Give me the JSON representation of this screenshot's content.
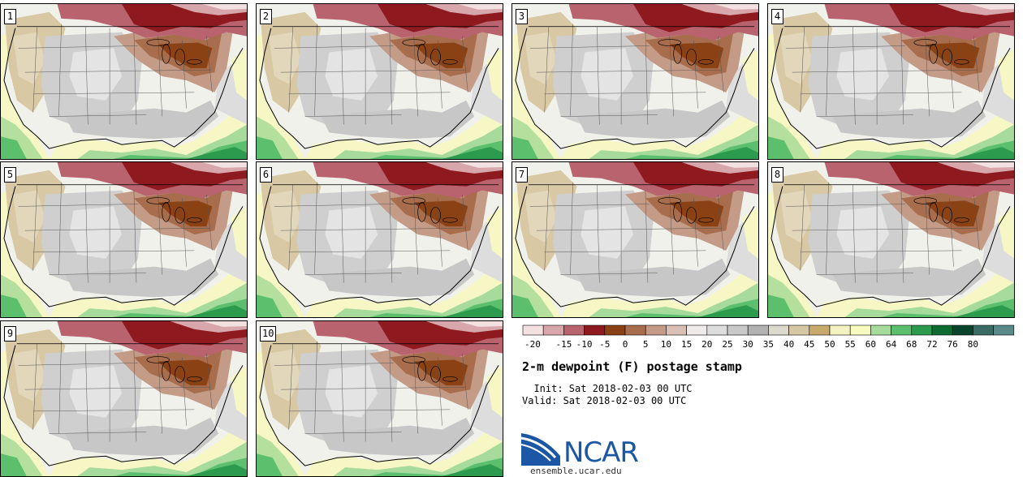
{
  "panels": [
    {
      "number": "1"
    },
    {
      "number": "2"
    },
    {
      "number": "3"
    },
    {
      "number": "4"
    },
    {
      "number": "5"
    },
    {
      "number": "6"
    },
    {
      "number": "7"
    },
    {
      "number": "8"
    },
    {
      "number": "9"
    },
    {
      "number": "10"
    }
  ],
  "colorbar": {
    "tick_labels": [
      "-20",
      "-15",
      "-10",
      "-5",
      "0",
      "5",
      "10",
      "15",
      "20",
      "25",
      "30",
      "35",
      "40",
      "45",
      "50",
      "55",
      "60",
      "64",
      "68",
      "72",
      "76",
      "80"
    ],
    "colors": [
      "#f3e0e0",
      "#d7a7ab",
      "#b9636e",
      "#8e1a1f",
      "#8a4215",
      "#a76d4c",
      "#c49b86",
      "#dac0b4",
      "#efebeb",
      "#dddddd",
      "#c9c9c9",
      "#b2b2b2",
      "#dcd9cd",
      "#d6c7a5",
      "#c8aa6d",
      "#f4f1c3",
      "#f8fbbf",
      "#a7db9c",
      "#5bbf6e",
      "#2d9b4e",
      "#0e6c33",
      "#09452c",
      "#3a6b64",
      "#5a8a8a"
    ]
  },
  "title": "2-m dewpoint (F) postage stamp",
  "init": "  Init: Sat 2018-02-03 00 UTC",
  "valid": "Valid: Sat 2018-02-03 00 UTC",
  "logo": {
    "text": "NCAR"
  },
  "site": "ensemble.ucar.edu"
}
